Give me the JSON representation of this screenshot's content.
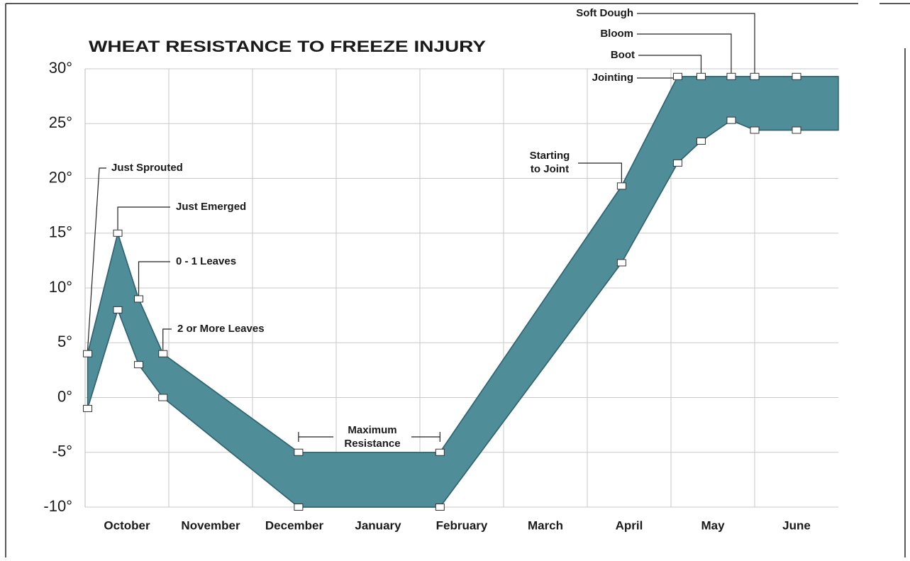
{
  "chart_data": {
    "type": "area",
    "title": "WHEAT RESISTANCE TO FREEZE INJURY",
    "categories": [
      "October",
      "November",
      "December",
      "January",
      "February",
      "March",
      "April",
      "May",
      "June"
    ],
    "xlim": [
      0,
      9
    ],
    "x": [
      0.03,
      0.39,
      0.64,
      0.93,
      2.55,
      4.24,
      6.41,
      7.08,
      7.36,
      7.72,
      8.0,
      8.5,
      9.0
    ],
    "series": [
      {
        "color": "#4f8d98",
        "values": [
          4,
          15,
          9,
          4,
          -5,
          -5,
          19.3,
          29.3,
          29.3,
          29.3,
          29.3,
          29.3,
          29.3
        ]
      },
      {
        "color": "#4f8d98",
        "values": [
          -1,
          8,
          3,
          0,
          -10,
          -10,
          12.3,
          21.4,
          23.4,
          25.3,
          24.4,
          24.4,
          24.4
        ]
      }
    ],
    "ylim": [
      -10,
      30
    ],
    "yticks": [
      {
        "value": 30,
        "label": "30°"
      },
      {
        "value": 25,
        "label": "25°"
      },
      {
        "value": 20,
        "label": "20°"
      },
      {
        "value": 15,
        "label": "15°"
      },
      {
        "value": 10,
        "label": "10°"
      },
      {
        "value": 5,
        "label": "5°"
      },
      {
        "value": 0,
        "label": "0°"
      },
      {
        "value": -5,
        "label": "-5°"
      },
      {
        "value": -10,
        "label": "-10°"
      }
    ],
    "grid": true,
    "annotations": [
      {
        "text": [
          "Just Sprouted"
        ]
      },
      {
        "text": [
          "Just Emerged"
        ]
      },
      {
        "text": [
          "0 - 1 Leaves"
        ]
      },
      {
        "text": [
          "2 or More Leaves"
        ]
      },
      {
        "text": [
          "Maximum",
          "Resistance"
        ]
      },
      {
        "text": [
          "Starting",
          "to Joint"
        ]
      },
      {
        "text": [
          "Jointing"
        ]
      },
      {
        "text": [
          "Boot"
        ]
      },
      {
        "text": [
          "Bloom"
        ]
      },
      {
        "text": [
          "Soft Dough"
        ]
      }
    ]
  }
}
